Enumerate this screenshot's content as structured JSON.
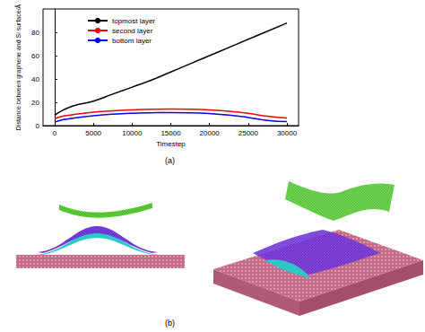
{
  "chart_data": {
    "type": "line",
    "x_label": "Timestep",
    "y_label": "Distance between graphene and Si surface/Å",
    "x": [
      0,
      1000,
      2000,
      3000,
      5000,
      7500,
      10000,
      12500,
      15000,
      17500,
      20000,
      22500,
      25000,
      27500,
      30000
    ],
    "series": [
      {
        "name": "topmost layer",
        "color": "#000000",
        "values": [
          9,
          13,
          16,
          18,
          21,
          27,
          33,
          39,
          46,
          53,
          60,
          67,
          74,
          81,
          88
        ]
      },
      {
        "name": "second layer",
        "color": "#ff0000",
        "values": [
          6,
          8,
          9,
          10,
          11.5,
          12.7,
          13.5,
          14,
          14.2,
          14,
          13.4,
          12.3,
          10.5,
          8,
          6.5
        ]
      },
      {
        "name": "bottom layer",
        "color": "#0000ff",
        "values": [
          3,
          5,
          6,
          7,
          8.5,
          9.8,
          10.6,
          11,
          11.2,
          11,
          10.3,
          9,
          7,
          4.5,
          3.5
        ]
      }
    ],
    "xlim": [
      -1500,
      31500
    ],
    "xticks": [
      0,
      5000,
      10000,
      15000,
      20000,
      25000,
      30000
    ],
    "ylim": [
      0,
      100
    ],
    "yticks": [
      0,
      20,
      40,
      60,
      80
    ],
    "grid": false,
    "legend": "upper left",
    "annotations": [
      "(a)",
      "(b)"
    ]
  }
}
